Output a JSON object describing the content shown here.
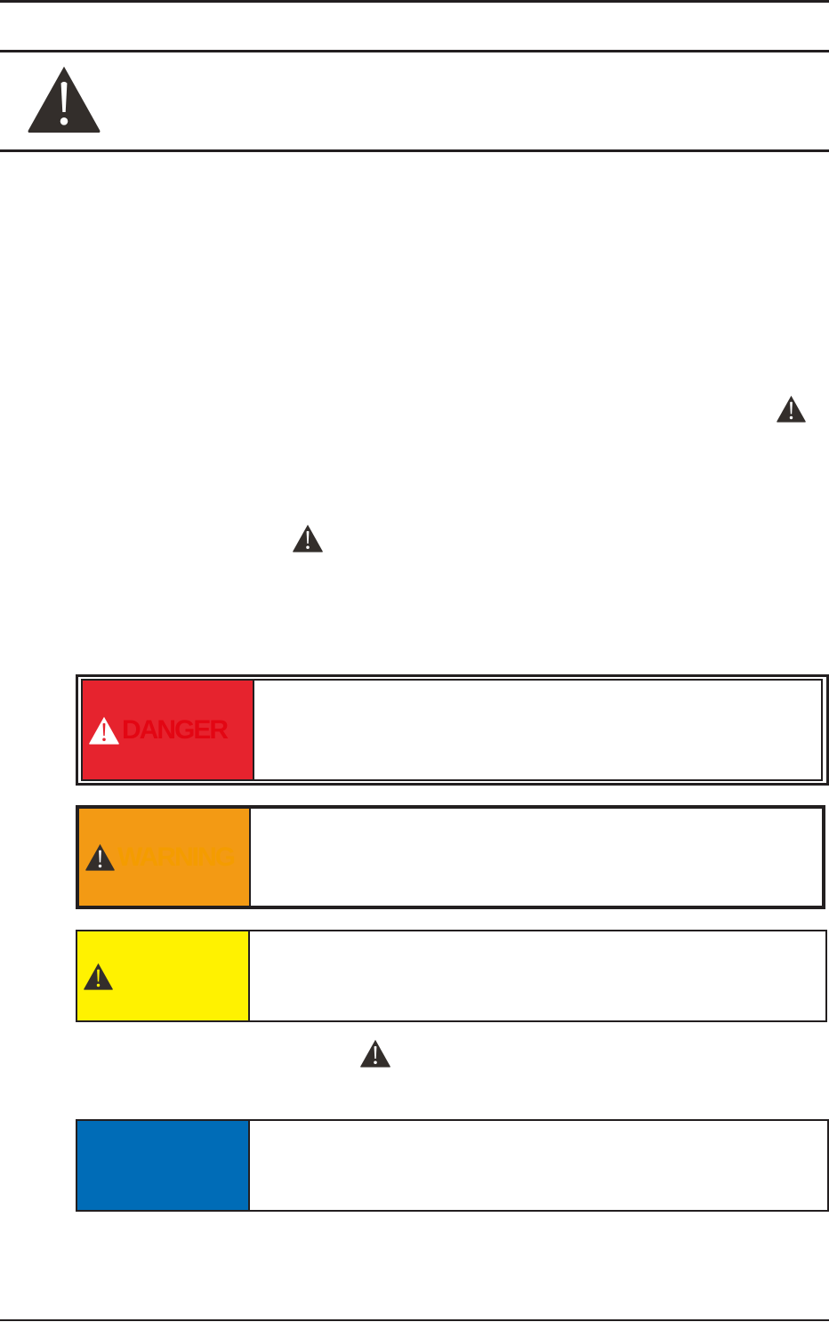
{
  "signal_words": {
    "danger": "DANGER",
    "warning": "WARNING"
  },
  "icons": {
    "header": "warning-triangle-icon",
    "inline": "warning-triangle-icon"
  },
  "colors": {
    "danger_bg": "#e6232e",
    "danger_text": "#e30613",
    "warning_bg": "#f39a14",
    "warning_text": "#f49c00",
    "caution_bg": "#fff200",
    "notice_bg": "#006cb7",
    "ink": "#231f20"
  }
}
